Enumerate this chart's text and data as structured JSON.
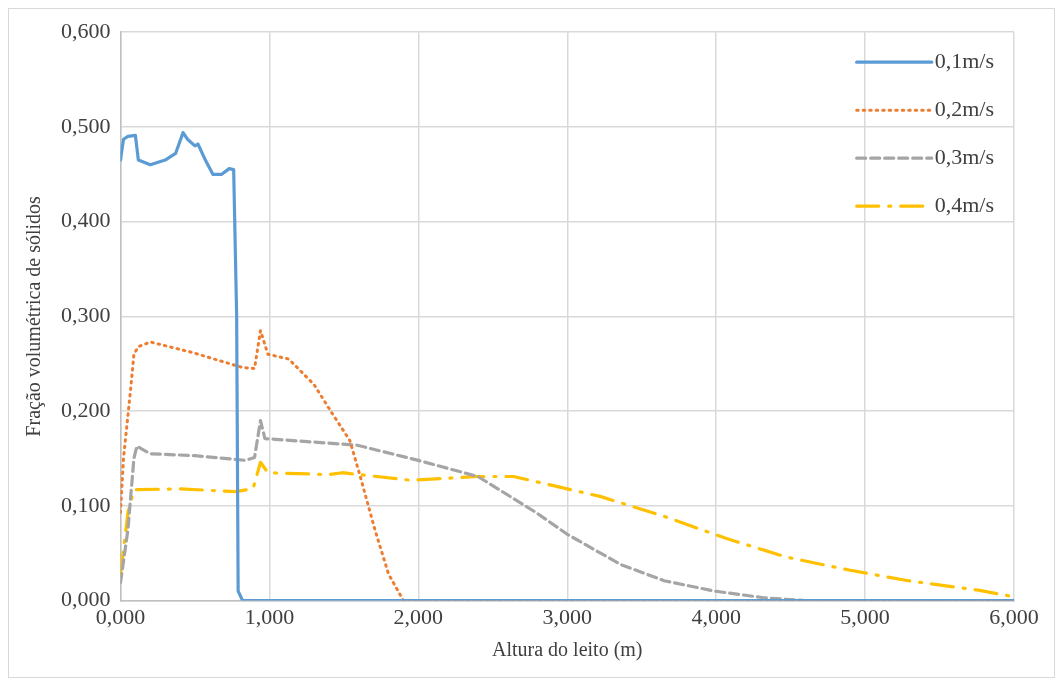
{
  "chart_data": {
    "type": "line",
    "xlabel": "Altura do leito (m)",
    "ylabel": "Fração volumétrica de sólidos",
    "xlim": [
      0,
      6
    ],
    "ylim": [
      0,
      0.6
    ],
    "xticks": [
      {
        "value": 0,
        "label": "0,000"
      },
      {
        "value": 1,
        "label": "1,000"
      },
      {
        "value": 2,
        "label": "2,000"
      },
      {
        "value": 3,
        "label": "3,000"
      },
      {
        "value": 4,
        "label": "4,000"
      },
      {
        "value": 5,
        "label": "5,000"
      },
      {
        "value": 6,
        "label": "6,000"
      }
    ],
    "yticks": [
      {
        "value": 0,
        "label": "0,000"
      },
      {
        "value": 0.1,
        "label": "0,100"
      },
      {
        "value": 0.2,
        "label": "0,200"
      },
      {
        "value": 0.3,
        "label": "0,300"
      },
      {
        "value": 0.4,
        "label": "0,400"
      },
      {
        "value": 0.5,
        "label": "0,500"
      },
      {
        "value": 0.6,
        "label": "0,600"
      }
    ],
    "grid": true,
    "legend": "top right",
    "marker": "none",
    "series": [
      {
        "name": "0,1m/s",
        "color": "#5b9bd5",
        "line_style": "solid",
        "x": [
          0,
          0.02,
          0.05,
          0.1,
          0.12,
          0.2,
          0.3,
          0.37,
          0.42,
          0.45,
          0.5,
          0.52,
          0.57,
          0.62,
          0.68,
          0.73,
          0.76,
          0.78,
          0.79,
          0.82,
          6
        ],
        "values": [
          0.465,
          0.487,
          0.49,
          0.491,
          0.465,
          0.46,
          0.465,
          0.472,
          0.494,
          0.487,
          0.48,
          0.482,
          0.465,
          0.45,
          0.45,
          0.456,
          0.455,
          0.3,
          0.01,
          0,
          0
        ]
      },
      {
        "name": "0,2m/s",
        "color": "#ed7d31",
        "line_style": "dotted",
        "x": [
          0,
          0.02,
          0.07,
          0.09,
          0.12,
          0.2,
          0.48,
          0.82,
          0.9,
          0.94,
          0.99,
          1.13,
          1.3,
          1.42,
          1.54,
          1.61,
          1.71,
          1.8,
          1.9,
          6
        ],
        "values": [
          0.093,
          0.15,
          0.226,
          0.26,
          0.268,
          0.273,
          0.262,
          0.246,
          0.245,
          0.285,
          0.26,
          0.255,
          0.228,
          0.198,
          0.169,
          0.131,
          0.074,
          0.028,
          0,
          0
        ]
      },
      {
        "name": "0,3m/s",
        "color": "#a5a5a5",
        "line_style": "dashed",
        "x": [
          0,
          0.05,
          0.09,
          0.11,
          0.2,
          0.5,
          0.84,
          0.9,
          0.94,
          0.97,
          1.59,
          2,
          2.4,
          2.79,
          3,
          3.36,
          3.65,
          3.99,
          4.32,
          4.6,
          6
        ],
        "values": [
          0.019,
          0.075,
          0.15,
          0.163,
          0.155,
          0.153,
          0.148,
          0.151,
          0.19,
          0.171,
          0.164,
          0.148,
          0.131,
          0.093,
          0.07,
          0.038,
          0.021,
          0.01,
          0.003,
          0,
          0
        ]
      },
      {
        "name": "0,4m/s",
        "color": "#ffc000",
        "line_style": "dashed",
        "x": [
          0,
          0.05,
          0.09,
          0.39,
          0.77,
          0.89,
          0.94,
          0.99,
          1.4,
          1.49,
          1.95,
          2.4,
          2.64,
          3.22,
          3.65,
          4.06,
          4.47,
          4.9,
          5.29,
          5.76,
          6
        ],
        "values": [
          0.028,
          0.093,
          0.117,
          0.118,
          0.115,
          0.118,
          0.146,
          0.135,
          0.133,
          0.135,
          0.127,
          0.131,
          0.131,
          0.11,
          0.089,
          0.066,
          0.046,
          0.032,
          0.021,
          0.011,
          0.004
        ]
      }
    ]
  }
}
